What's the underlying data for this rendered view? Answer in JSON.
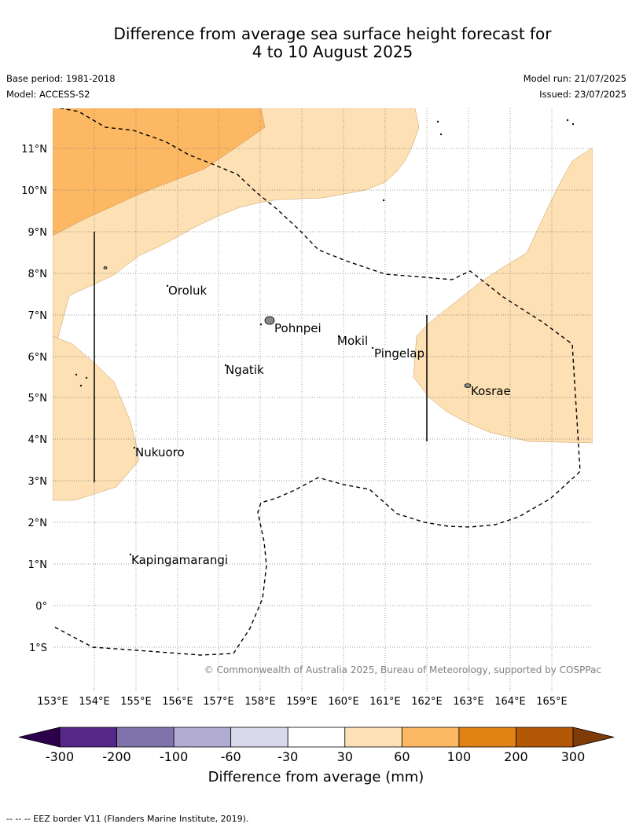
{
  "header": {
    "title_line1": "Difference from average sea surface height forecast for",
    "title_line2": "4 to 10 August 2025",
    "base_period": "Base period: 1981-2018",
    "model": "Model: ACCESS-S2",
    "model_run": "Model run: 21/07/2025",
    "issued": "Issued: 23/07/2025"
  },
  "map": {
    "lat_labels": [
      "11°N",
      "10°N",
      "9°N",
      "8°N",
      "7°N",
      "6°N",
      "5°N",
      "4°N",
      "3°N",
      "2°N",
      "1°N",
      "0°",
      "1°S"
    ],
    "lon_labels": [
      "153°E",
      "154°E",
      "155°E",
      "156°E",
      "157°E",
      "158°E",
      "159°E",
      "160°E",
      "161°E",
      "162°E",
      "163°E",
      "164°E",
      "165°E"
    ],
    "places": [
      "Oroluk",
      "Pohnpei",
      "Mokil",
      "Pingelap",
      "Ngatik",
      "Kosrae",
      "Nukuoro",
      "Kapingamarangi"
    ],
    "copyright": "© Commonwealth of Australia 2025, Bureau of Meteorology, supported by COSPPac",
    "fill_colors": {
      "light_orange": "#fde0b3",
      "medium_orange": "#fdb863",
      "eez_line": "#000000"
    }
  },
  "colorbar": {
    "title": "Difference from average (mm)",
    "tick_labels": [
      "-300",
      "-200",
      "-100",
      "-60",
      "-30",
      "30",
      "60",
      "100",
      "200",
      "300"
    ],
    "colors": [
      "#2d004b",
      "#542788",
      "#8073ac",
      "#b2abd2",
      "#d8daeb",
      "#ffffff",
      "#fee0b6",
      "#fdb863",
      "#e08214",
      "#b35806",
      "#7f3b08"
    ]
  },
  "footer": {
    "text": "-- -- -- EEZ border V11 (Flanders Marine Institute, 2019)."
  }
}
